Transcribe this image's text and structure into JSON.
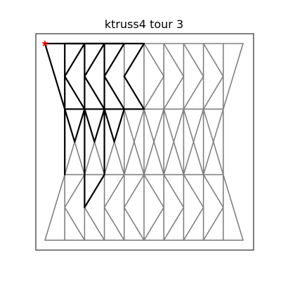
{
  "title": "ktruss4  tour 3",
  "colors": {
    "graph_edge": "#808080",
    "tour_edge": "#000000",
    "start_marker": "#ff0000",
    "background": "#ffffff"
  },
  "grid": {
    "columns_x": [
      0,
      1,
      2,
      3,
      4,
      5,
      6,
      7,
      8,
      9,
      10
    ],
    "rows_y": [
      0,
      1,
      2,
      3
    ]
  },
  "start_node": [
    0,
    0
  ],
  "gray_edges": [
    [
      [
        0,
        0
      ],
      [
        10,
        0
      ]
    ],
    [
      [
        1,
        0
      ],
      [
        1,
        3
      ]
    ],
    [
      [
        2,
        0
      ],
      [
        2,
        3
      ]
    ],
    [
      [
        3,
        0
      ],
      [
        3,
        3
      ]
    ],
    [
      [
        4,
        0
      ],
      [
        4,
        3
      ]
    ],
    [
      [
        5,
        0
      ],
      [
        5,
        3
      ]
    ],
    [
      [
        6,
        0
      ],
      [
        6,
        3
      ]
    ],
    [
      [
        7,
        0
      ],
      [
        7,
        3
      ]
    ],
    [
      [
        8,
        0
      ],
      [
        8,
        3
      ]
    ],
    [
      [
        9,
        0
      ],
      [
        9,
        3
      ]
    ],
    [
      [
        1,
        1
      ],
      [
        9,
        1
      ]
    ],
    [
      [
        1,
        2
      ],
      [
        9,
        2
      ]
    ],
    [
      [
        0,
        0
      ],
      [
        1,
        1
      ]
    ],
    [
      [
        10,
        0
      ],
      [
        9,
        1
      ]
    ],
    [
      [
        0,
        3
      ],
      [
        1,
        2
      ]
    ],
    [
      [
        10,
        3
      ],
      [
        9,
        2
      ]
    ],
    [
      [
        0,
        3
      ],
      [
        10,
        3
      ]
    ],
    [
      [
        1,
        0.5
      ],
      [
        2,
        0
      ]
    ],
    [
      [
        1,
        0.5
      ],
      [
        2,
        1
      ]
    ],
    [
      [
        2,
        0.5
      ],
      [
        3,
        0
      ]
    ],
    [
      [
        2,
        0.5
      ],
      [
        3,
        1
      ]
    ],
    [
      [
        3,
        0.5
      ],
      [
        4,
        0
      ]
    ],
    [
      [
        3,
        0.5
      ],
      [
        4,
        1
      ]
    ],
    [
      [
        4,
        0.5
      ],
      [
        5,
        0
      ]
    ],
    [
      [
        4,
        0.5
      ],
      [
        5,
        1
      ]
    ],
    [
      [
        6,
        0.5
      ],
      [
        5,
        0
      ]
    ],
    [
      [
        6,
        0.5
      ],
      [
        5,
        1
      ]
    ],
    [
      [
        7,
        0.5
      ],
      [
        6,
        0
      ]
    ],
    [
      [
        7,
        0.5
      ],
      [
        6,
        1
      ]
    ],
    [
      [
        8,
        0.5
      ],
      [
        7,
        0
      ]
    ],
    [
      [
        8,
        0.5
      ],
      [
        7,
        1
      ]
    ],
    [
      [
        9,
        0.5
      ],
      [
        8,
        0
      ]
    ],
    [
      [
        9,
        0.5
      ],
      [
        8,
        1
      ]
    ],
    [
      [
        1,
        1
      ],
      [
        1.5,
        1.5
      ]
    ],
    [
      [
        2,
        1
      ],
      [
        1.5,
        1.5
      ]
    ],
    [
      [
        1,
        2
      ],
      [
        1.5,
        1.5
      ]
    ],
    [
      [
        2,
        2
      ],
      [
        1.5,
        1.5
      ]
    ],
    [
      [
        2,
        1
      ],
      [
        2.5,
        1.5
      ]
    ],
    [
      [
        3,
        1
      ],
      [
        2.5,
        1.5
      ]
    ],
    [
      [
        2,
        2
      ],
      [
        2.5,
        1.5
      ]
    ],
    [
      [
        3,
        2
      ],
      [
        2.5,
        1.5
      ]
    ],
    [
      [
        3,
        1
      ],
      [
        3.5,
        1.5
      ]
    ],
    [
      [
        4,
        1
      ],
      [
        3.5,
        1.5
      ]
    ],
    [
      [
        3,
        2
      ],
      [
        3.5,
        1.5
      ]
    ],
    [
      [
        4,
        2
      ],
      [
        3.5,
        1.5
      ]
    ],
    [
      [
        4,
        1
      ],
      [
        4.5,
        1.5
      ]
    ],
    [
      [
        5,
        1
      ],
      [
        4.5,
        1.5
      ]
    ],
    [
      [
        4,
        2
      ],
      [
        4.5,
        1.5
      ]
    ],
    [
      [
        5,
        2
      ],
      [
        4.5,
        1.5
      ]
    ],
    [
      [
        5,
        1
      ],
      [
        5.5,
        1.5
      ]
    ],
    [
      [
        6,
        1
      ],
      [
        5.5,
        1.5
      ]
    ],
    [
      [
        5,
        2
      ],
      [
        5.5,
        1.5
      ]
    ],
    [
      [
        6,
        2
      ],
      [
        5.5,
        1.5
      ]
    ],
    [
      [
        6,
        1
      ],
      [
        6.5,
        1.5
      ]
    ],
    [
      [
        7,
        1
      ],
      [
        6.5,
        1.5
      ]
    ],
    [
      [
        6,
        2
      ],
      [
        6.5,
        1.5
      ]
    ],
    [
      [
        7,
        2
      ],
      [
        6.5,
        1.5
      ]
    ],
    [
      [
        7,
        1
      ],
      [
        7.5,
        1.5
      ]
    ],
    [
      [
        8,
        1
      ],
      [
        7.5,
        1.5
      ]
    ],
    [
      [
        7,
        2
      ],
      [
        7.5,
        1.5
      ]
    ],
    [
      [
        8,
        2
      ],
      [
        7.5,
        1.5
      ]
    ],
    [
      [
        8,
        1
      ],
      [
        8.5,
        1.5
      ]
    ],
    [
      [
        9,
        1
      ],
      [
        8.5,
        1.5
      ]
    ],
    [
      [
        8,
        2
      ],
      [
        8.5,
        1.5
      ]
    ],
    [
      [
        9,
        2
      ],
      [
        8.5,
        1.5
      ]
    ],
    [
      [
        1,
        2.5
      ],
      [
        2,
        2
      ]
    ],
    [
      [
        1,
        2.5
      ],
      [
        2,
        3
      ]
    ],
    [
      [
        2,
        2.5
      ],
      [
        3,
        2
      ]
    ],
    [
      [
        2,
        2.5
      ],
      [
        3,
        3
      ]
    ],
    [
      [
        3,
        2.5
      ],
      [
        4,
        2
      ]
    ],
    [
      [
        3,
        2.5
      ],
      [
        4,
        3
      ]
    ],
    [
      [
        4,
        2.5
      ],
      [
        5,
        2
      ]
    ],
    [
      [
        4,
        2.5
      ],
      [
        5,
        3
      ]
    ],
    [
      [
        6,
        2.5
      ],
      [
        5,
        2
      ]
    ],
    [
      [
        6,
        2.5
      ],
      [
        5,
        3
      ]
    ],
    [
      [
        7,
        2.5
      ],
      [
        6,
        2
      ]
    ],
    [
      [
        7,
        2.5
      ],
      [
        6,
        3
      ]
    ],
    [
      [
        8,
        2.5
      ],
      [
        7,
        2
      ]
    ],
    [
      [
        8,
        2.5
      ],
      [
        7,
        3
      ]
    ],
    [
      [
        9,
        2.5
      ],
      [
        8,
        2
      ]
    ],
    [
      [
        9,
        2.5
      ],
      [
        8,
        3
      ]
    ]
  ],
  "tour_path": [
    [
      0,
      0
    ],
    [
      1,
      1
    ],
    [
      1,
      0
    ],
    [
      2,
      0
    ],
    [
      1,
      0.5
    ],
    [
      2,
      1
    ],
    [
      2,
      0
    ],
    [
      3,
      0
    ],
    [
      2,
      0.5
    ],
    [
      3,
      1
    ],
    [
      3,
      0
    ],
    [
      4,
      0
    ],
    [
      3,
      0.5
    ],
    [
      4,
      1
    ],
    [
      5,
      1
    ],
    [
      4,
      0.5
    ],
    [
      5,
      0
    ],
    [
      4,
      0
    ],
    [
      0,
      0
    ]
  ],
  "tour_extra_edges": [
    [
      [
        1,
        1
      ],
      [
        4,
        1
      ]
    ],
    [
      [
        1,
        1
      ],
      [
        1,
        2
      ]
    ],
    [
      [
        2,
        1
      ],
      [
        2,
        2.5
      ]
    ],
    [
      [
        3,
        1
      ],
      [
        3,
        2
      ]
    ],
    [
      [
        1,
        1
      ],
      [
        1.5,
        1.5
      ]
    ],
    [
      [
        2,
        1
      ],
      [
        1.5,
        1.5
      ]
    ],
    [
      [
        2,
        1
      ],
      [
        2.5,
        1.5
      ]
    ],
    [
      [
        3,
        1
      ],
      [
        2.5,
        1.5
      ]
    ],
    [
      [
        3,
        1
      ],
      [
        3.5,
        1.5
      ]
    ],
    [
      [
        4,
        1
      ],
      [
        3.5,
        1.5
      ]
    ],
    [
      [
        3,
        2
      ],
      [
        2,
        2.5
      ]
    ]
  ]
}
